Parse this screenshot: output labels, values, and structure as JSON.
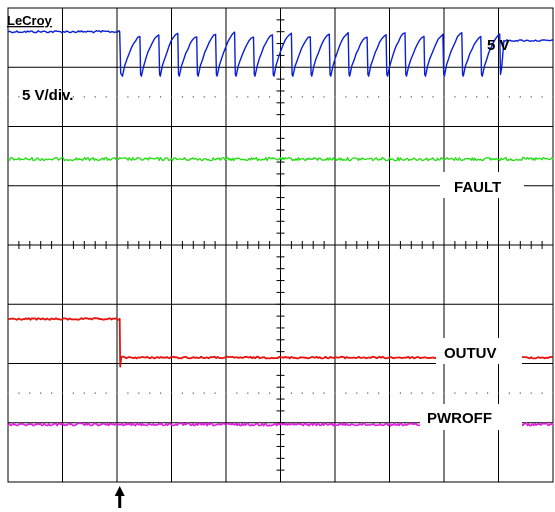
{
  "brand": "LeCroy",
  "chart_data": {
    "type": "line",
    "title": "",
    "xlabel": "",
    "ylabel": "",
    "grid": true,
    "grid_divisions": {
      "x": 10,
      "y": 8
    },
    "x_range_div": [
      0,
      10
    ],
    "trigger_marker_div": 2.05,
    "annotations": {
      "supply_level": "5 V",
      "vertical_scale": "5 V/div."
    },
    "series": [
      {
        "name": "5 V",
        "color": "#0a1fd6",
        "shape": "high, then hiccup sawtooth, then recovered high",
        "high_until_div": 2.05,
        "sawtooth_start_div": 2.1,
        "sawtooth_end_div": 9.05,
        "sawtooth_cycles": 20,
        "recovered_from_div": 9.1,
        "level_high_div": 7.6,
        "level_low_div": 6.9,
        "level_recovered_div": 7.45
      },
      {
        "name": "FAULT",
        "color": "#22dd11",
        "shape": "flat with noise",
        "level_div": 5.45
      },
      {
        "name": "OUTUV",
        "color": "#e8120c",
        "shape": "high, step down at trigger, then low",
        "step_at_div": 2.05,
        "level_high_div": 2.75,
        "level_low_div": 2.1
      },
      {
        "name": "PWROFF",
        "color": "#e21ee0",
        "shape": "flat with noise",
        "level_div": 0.97
      }
    ]
  }
}
